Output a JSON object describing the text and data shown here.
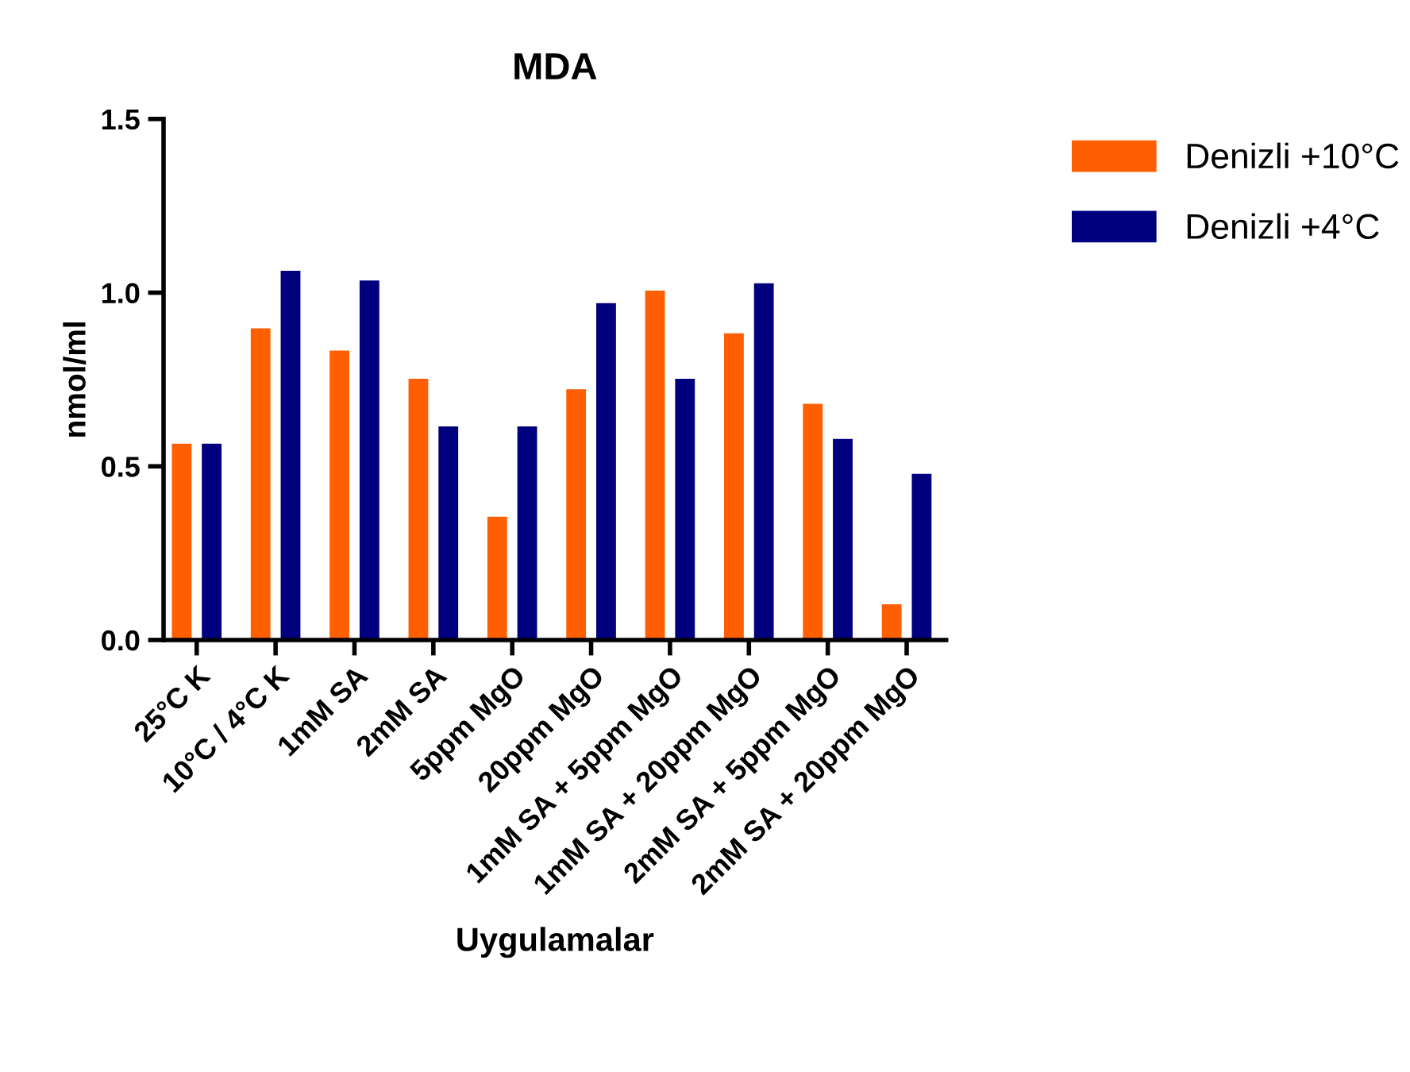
{
  "chart_data": {
    "type": "bar",
    "title": "MDA",
    "xlabel": "Uygulamalar",
    "ylabel": "nmol/ml",
    "categories": [
      "25°C K",
      "10°C / 4°C K",
      "1mM SA",
      "2mM SA",
      "5ppm MgO",
      "20ppm MgO",
      "1mM SA + 5ppm MgO",
      "1mM SA + 20ppm MgO",
      "2mM SA + 5ppm MgO",
      "2mM SA + 20ppm MgO"
    ],
    "series": [
      {
        "name": "Denizli +10°C",
        "color": "#ff5f00",
        "values": [
          0.565,
          0.897,
          0.833,
          0.752,
          0.355,
          0.722,
          1.006,
          0.883,
          0.68,
          0.103
        ]
      },
      {
        "name": "Denizli +4°C",
        "color": "#00007f",
        "values": [
          0.565,
          1.063,
          1.035,
          0.615,
          0.615,
          0.97,
          0.752,
          1.027,
          0.579,
          0.478
        ]
      }
    ],
    "ylim": [
      0,
      1.5
    ],
    "yticks": [
      {
        "value": 0,
        "label": "0.0"
      },
      {
        "value": 0.5,
        "label": "0.5"
      },
      {
        "value": 1,
        "label": "1.0"
      },
      {
        "value": 1.5,
        "label": "1.5"
      }
    ],
    "grid": false,
    "legend": "top right"
  }
}
